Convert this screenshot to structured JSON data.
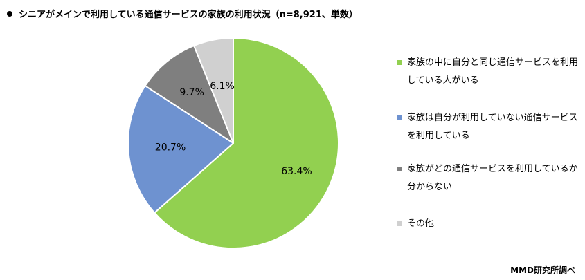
{
  "title": "シニアがメインで利用している通信サービスの家族の利用状況（n=8,921、単数）",
  "source": "MMD研究所調べ",
  "chart_data": {
    "type": "pie",
    "title": "シニアがメインで利用している通信サービスの家族の利用状況（n=8,921、単数）",
    "start_angle_deg": 0,
    "direction": "clockwise",
    "legend_position": "right",
    "slices": [
      {
        "label": "家族の中に自分と同じ通信サービスを利用している人がいる",
        "value": 63.4,
        "display": "63.4%",
        "color": "#92D050"
      },
      {
        "label": "家族は自分が利用していない通信サービスを利用している",
        "value": 20.7,
        "display": "20.7%",
        "color": "#6E92D0"
      },
      {
        "label": "家族がどの通信サービスを利用しているか分からない",
        "value": 9.7,
        "display": "9.7%",
        "color": "#7F7F7F"
      },
      {
        "label": "その他",
        "value": 6.1,
        "display": "6.1%",
        "color": "#D0D0D0"
      }
    ]
  }
}
